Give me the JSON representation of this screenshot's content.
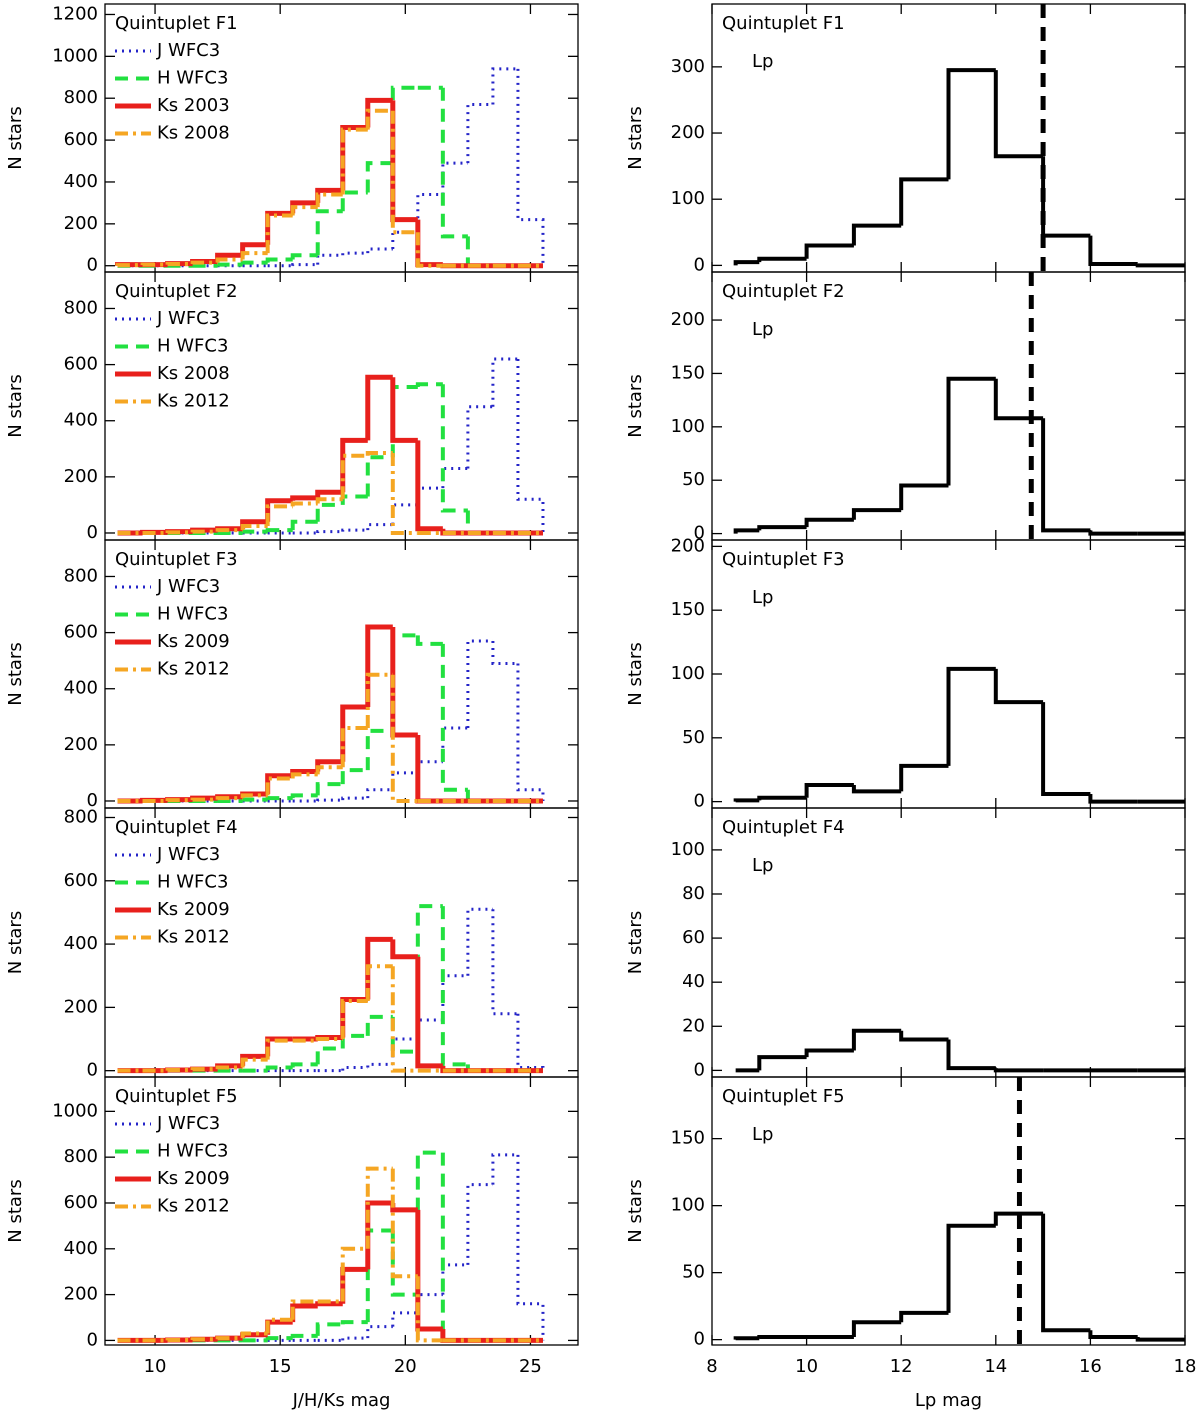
{
  "chart_data": [
    {
      "type": "histogram",
      "title": "Quintuplet F1",
      "ylabel": "N stars",
      "bins": [
        8.5,
        9.5,
        10.5,
        11.5,
        12.5,
        13.5,
        14.5,
        15.5,
        16.5,
        17.5,
        18.5,
        19.5,
        20.5,
        21.5,
        22.5,
        23.5,
        24.5,
        25.5
      ],
      "series": [
        {
          "name": "J WFC3",
          "color": "#2424c8",
          "style": "dotted",
          "values": [
            0,
            0,
            0,
            0,
            0,
            0,
            0,
            5,
            50,
            60,
            80,
            160,
            340,
            490,
            770,
            940,
            220
          ]
        },
        {
          "name": "H WFC3",
          "color": "#22e040",
          "style": "dashed",
          "values": [
            0,
            0,
            0,
            0,
            5,
            15,
            30,
            50,
            260,
            350,
            490,
            850,
            850,
            140,
            0,
            0,
            0
          ]
        },
        {
          "name": "Ks 2003",
          "color": "#e8201c",
          "style": "solid",
          "values": [
            5,
            5,
            10,
            20,
            50,
            100,
            250,
            300,
            360,
            660,
            790,
            220,
            5,
            0,
            0,
            0,
            0
          ]
        },
        {
          "name": "Ks 2008",
          "color": "#f5a623",
          "style": "dashdot",
          "values": [
            3,
            5,
            8,
            15,
            30,
            60,
            240,
            280,
            340,
            650,
            740,
            160,
            0,
            0,
            0,
            0,
            0
          ]
        }
      ],
      "xlim": [
        8,
        26.9
      ],
      "xticks": [
        10,
        15,
        20,
        25
      ],
      "ylim": [
        -30,
        1250
      ],
      "yticks": [
        0,
        200,
        400,
        600,
        800,
        1000,
        1200
      ]
    },
    {
      "type": "histogram",
      "title": "Quintuplet F2",
      "ylabel": "N stars",
      "bins": [
        8.5,
        9.5,
        10.5,
        11.5,
        12.5,
        13.5,
        14.5,
        15.5,
        16.5,
        17.5,
        18.5,
        19.5,
        20.5,
        21.5,
        22.5,
        23.5,
        24.5,
        25.5
      ],
      "series": [
        {
          "name": "J WFC3",
          "color": "#2424c8",
          "style": "dotted",
          "values": [
            0,
            0,
            0,
            0,
            0,
            0,
            0,
            0,
            5,
            10,
            30,
            100,
            160,
            230,
            450,
            620,
            120
          ]
        },
        {
          "name": "H WFC3",
          "color": "#22e040",
          "style": "dashed",
          "values": [
            0,
            0,
            0,
            0,
            0,
            5,
            10,
            40,
            100,
            130,
            270,
            520,
            530,
            80,
            0,
            0,
            0
          ]
        },
        {
          "name": "Ks 2008",
          "color": "#e8201c",
          "style": "solid",
          "values": [
            0,
            2,
            5,
            10,
            15,
            40,
            115,
            125,
            145,
            330,
            555,
            330,
            15,
            0,
            0,
            0,
            0
          ]
        },
        {
          "name": "Ks 2012",
          "color": "#f5a623",
          "style": "dashdot",
          "values": [
            0,
            0,
            2,
            5,
            10,
            25,
            95,
            105,
            120,
            275,
            285,
            0,
            0,
            0,
            0,
            0,
            0
          ]
        }
      ],
      "xlim": [
        8,
        26.9
      ],
      "xticks": [
        10,
        15,
        20,
        25
      ],
      "ylim": [
        -25,
        930
      ],
      "yticks": [
        0,
        200,
        400,
        600,
        800
      ]
    },
    {
      "type": "histogram",
      "title": "Quintuplet F3",
      "ylabel": "N stars",
      "bins": [
        8.5,
        9.5,
        10.5,
        11.5,
        12.5,
        13.5,
        14.5,
        15.5,
        16.5,
        17.5,
        18.5,
        19.5,
        20.5,
        21.5,
        22.5,
        23.5,
        24.5,
        25.5
      ],
      "series": [
        {
          "name": "J WFC3",
          "color": "#2424c8",
          "style": "dotted",
          "values": [
            0,
            0,
            0,
            0,
            0,
            0,
            0,
            0,
            3,
            10,
            40,
            100,
            140,
            260,
            570,
            490,
            40
          ]
        },
        {
          "name": "H WFC3",
          "color": "#22e040",
          "style": "dashed",
          "values": [
            0,
            0,
            0,
            0,
            0,
            5,
            10,
            20,
            60,
            110,
            250,
            590,
            560,
            40,
            0,
            0,
            0
          ]
        },
        {
          "name": "Ks 2009",
          "color": "#e8201c",
          "style": "solid",
          "values": [
            0,
            2,
            5,
            10,
            15,
            25,
            90,
            105,
            140,
            335,
            620,
            235,
            0,
            0,
            0,
            0,
            0
          ]
        },
        {
          "name": "Ks 2012",
          "color": "#f5a623",
          "style": "dashdot",
          "values": [
            0,
            0,
            3,
            5,
            10,
            20,
            80,
            95,
            120,
            260,
            450,
            0,
            0,
            0,
            0,
            0,
            0
          ]
        }
      ],
      "xlim": [
        8,
        26.9
      ],
      "xticks": [
        10,
        15,
        20,
        25
      ],
      "ylim": [
        -25,
        930
      ],
      "yticks": [
        0,
        200,
        400,
        600,
        800
      ]
    },
    {
      "type": "histogram",
      "title": "Quintuplet F4",
      "ylabel": "N stars",
      "bins": [
        8.5,
        9.5,
        10.5,
        11.5,
        12.5,
        13.5,
        14.5,
        15.5,
        16.5,
        17.5,
        18.5,
        19.5,
        20.5,
        21.5,
        22.5,
        23.5,
        24.5,
        25.5
      ],
      "series": [
        {
          "name": "J WFC3",
          "color": "#2424c8",
          "style": "dotted",
          "values": [
            0,
            0,
            0,
            0,
            0,
            0,
            0,
            0,
            0,
            10,
            20,
            100,
            160,
            300,
            510,
            180,
            10
          ]
        },
        {
          "name": "H WFC3",
          "color": "#22e040",
          "style": "dashed",
          "values": [
            0,
            0,
            0,
            0,
            0,
            0,
            10,
            20,
            70,
            110,
            170,
            60,
            520,
            20,
            0,
            0,
            0
          ]
        },
        {
          "name": "Ks 2009",
          "color": "#e8201c",
          "style": "solid",
          "values": [
            0,
            0,
            2,
            5,
            15,
            45,
            100,
            100,
            105,
            225,
            415,
            360,
            15,
            0,
            0,
            0,
            0
          ]
        },
        {
          "name": "Ks 2012",
          "color": "#f5a623",
          "style": "dashdot",
          "values": [
            0,
            0,
            2,
            5,
            10,
            35,
            95,
            95,
            100,
            220,
            330,
            0,
            0,
            0,
            0,
            0,
            0
          ]
        }
      ],
      "xlim": [
        8,
        26.9
      ],
      "xticks": [
        10,
        15,
        20,
        25
      ],
      "ylim": [
        -20,
        830
      ],
      "yticks": [
        0,
        200,
        400,
        600,
        800
      ]
    },
    {
      "type": "histogram",
      "title": "Quintuplet F5",
      "ylabel": "N stars",
      "xlabel": "J/H/Ks mag",
      "bins": [
        8.5,
        9.5,
        10.5,
        11.5,
        12.5,
        13.5,
        14.5,
        15.5,
        16.5,
        17.5,
        18.5,
        19.5,
        20.5,
        21.5,
        22.5,
        23.5,
        24.5,
        25.5
      ],
      "series": [
        {
          "name": "J WFC3",
          "color": "#2424c8",
          "style": "dotted",
          "values": [
            0,
            0,
            0,
            0,
            0,
            0,
            0,
            0,
            0,
            10,
            60,
            120,
            200,
            330,
            680,
            810,
            160
          ]
        },
        {
          "name": "H WFC3",
          "color": "#22e040",
          "style": "dashed",
          "values": [
            0,
            0,
            0,
            0,
            0,
            0,
            10,
            20,
            70,
            80,
            480,
            200,
            820,
            0,
            0,
            0,
            0
          ]
        },
        {
          "name": "Ks 2009",
          "color": "#e8201c",
          "style": "solid",
          "values": [
            0,
            0,
            2,
            5,
            10,
            25,
            80,
            150,
            160,
            310,
            600,
            570,
            50,
            0,
            0,
            0,
            0
          ]
        },
        {
          "name": "Ks 2012",
          "color": "#f5a623",
          "style": "dashdot",
          "values": [
            0,
            0,
            2,
            5,
            10,
            30,
            90,
            170,
            170,
            400,
            750,
            280,
            0,
            0,
            0,
            0,
            0
          ]
        }
      ],
      "xlim": [
        8,
        26.9
      ],
      "xticks": [
        10,
        15,
        20,
        25
      ],
      "ylim": [
        -20,
        1150
      ],
      "yticks": [
        0,
        200,
        400,
        600,
        800,
        1000
      ]
    },
    {
      "type": "histogram",
      "title": "Quintuplet F1",
      "ylabel": "N stars",
      "bins": [
        8.5,
        9,
        10,
        11,
        12,
        13,
        14,
        15,
        16,
        17,
        18
      ],
      "series": [
        {
          "name": "Lp",
          "color": "#000000",
          "values": [
            5,
            10,
            30,
            60,
            130,
            295,
            165,
            45,
            2,
            0
          ]
        }
      ],
      "vline": 15.0,
      "xlim": [
        8,
        18
      ],
      "xticks": [
        8,
        10,
        12,
        14,
        16,
        18
      ],
      "ylim": [
        -10,
        395
      ],
      "yticks": [
        0,
        100,
        200,
        300
      ]
    },
    {
      "type": "histogram",
      "title": "Quintuplet F2",
      "ylabel": "N stars",
      "bins": [
        8.5,
        9,
        10,
        11,
        12,
        13,
        14,
        15,
        16,
        17,
        18
      ],
      "series": [
        {
          "name": "Lp",
          "color": "#000000",
          "values": [
            3,
            6,
            13,
            22,
            45,
            145,
            108,
            3,
            0,
            0
          ]
        }
      ],
      "vline": 14.75,
      "xlim": [
        8,
        18
      ],
      "xticks": [
        8,
        10,
        12,
        14,
        16,
        18
      ],
      "ylim": [
        -6,
        245
      ],
      "yticks": [
        0,
        50,
        100,
        150,
        200
      ]
    },
    {
      "type": "histogram",
      "title": "Quintuplet F3",
      "ylabel": "N stars",
      "bins": [
        8.5,
        9,
        10,
        11,
        12,
        13,
        14,
        15,
        16,
        17,
        18
      ],
      "series": [
        {
          "name": "Lp",
          "color": "#000000",
          "values": [
            1,
            3,
            13,
            8,
            28,
            104,
            78,
            6,
            0,
            0
          ]
        }
      ],
      "xlim": [
        8,
        18
      ],
      "xticks": [
        8,
        10,
        12,
        14,
        16,
        18
      ],
      "ylim": [
        -5,
        205
      ],
      "yticks": [
        0,
        50,
        100,
        150,
        200
      ]
    },
    {
      "type": "histogram",
      "title": "Quintuplet F4",
      "ylabel": "N stars",
      "bins": [
        8.5,
        9,
        10,
        11,
        12,
        13,
        14,
        15,
        16,
        17,
        18
      ],
      "series": [
        {
          "name": "Lp",
          "color": "#000000",
          "values": [
            0,
            6,
            9,
            18,
            14,
            1,
            0,
            0,
            0,
            0
          ]
        }
      ],
      "xlim": [
        8,
        18
      ],
      "xticks": [
        8,
        10,
        12,
        14,
        16,
        18
      ],
      "ylim": [
        -3,
        119
      ],
      "yticks": [
        0,
        20,
        40,
        60,
        80,
        100
      ]
    },
    {
      "type": "histogram",
      "title": "Quintuplet F5",
      "ylabel": "N stars",
      "xlabel": "Lp mag",
      "bins": [
        8.5,
        9,
        10,
        11,
        12,
        13,
        14,
        15,
        16,
        17,
        18
      ],
      "series": [
        {
          "name": "Lp",
          "color": "#000000",
          "values": [
            1,
            2,
            2,
            13,
            20,
            85,
            94,
            7,
            2,
            0
          ]
        }
      ],
      "vline": 14.5,
      "xlim": [
        8,
        18
      ],
      "xticks": [
        8,
        10,
        12,
        14,
        16,
        18
      ],
      "ylim": [
        -4,
        196
      ],
      "yticks": [
        0,
        50,
        100,
        150
      ]
    }
  ]
}
